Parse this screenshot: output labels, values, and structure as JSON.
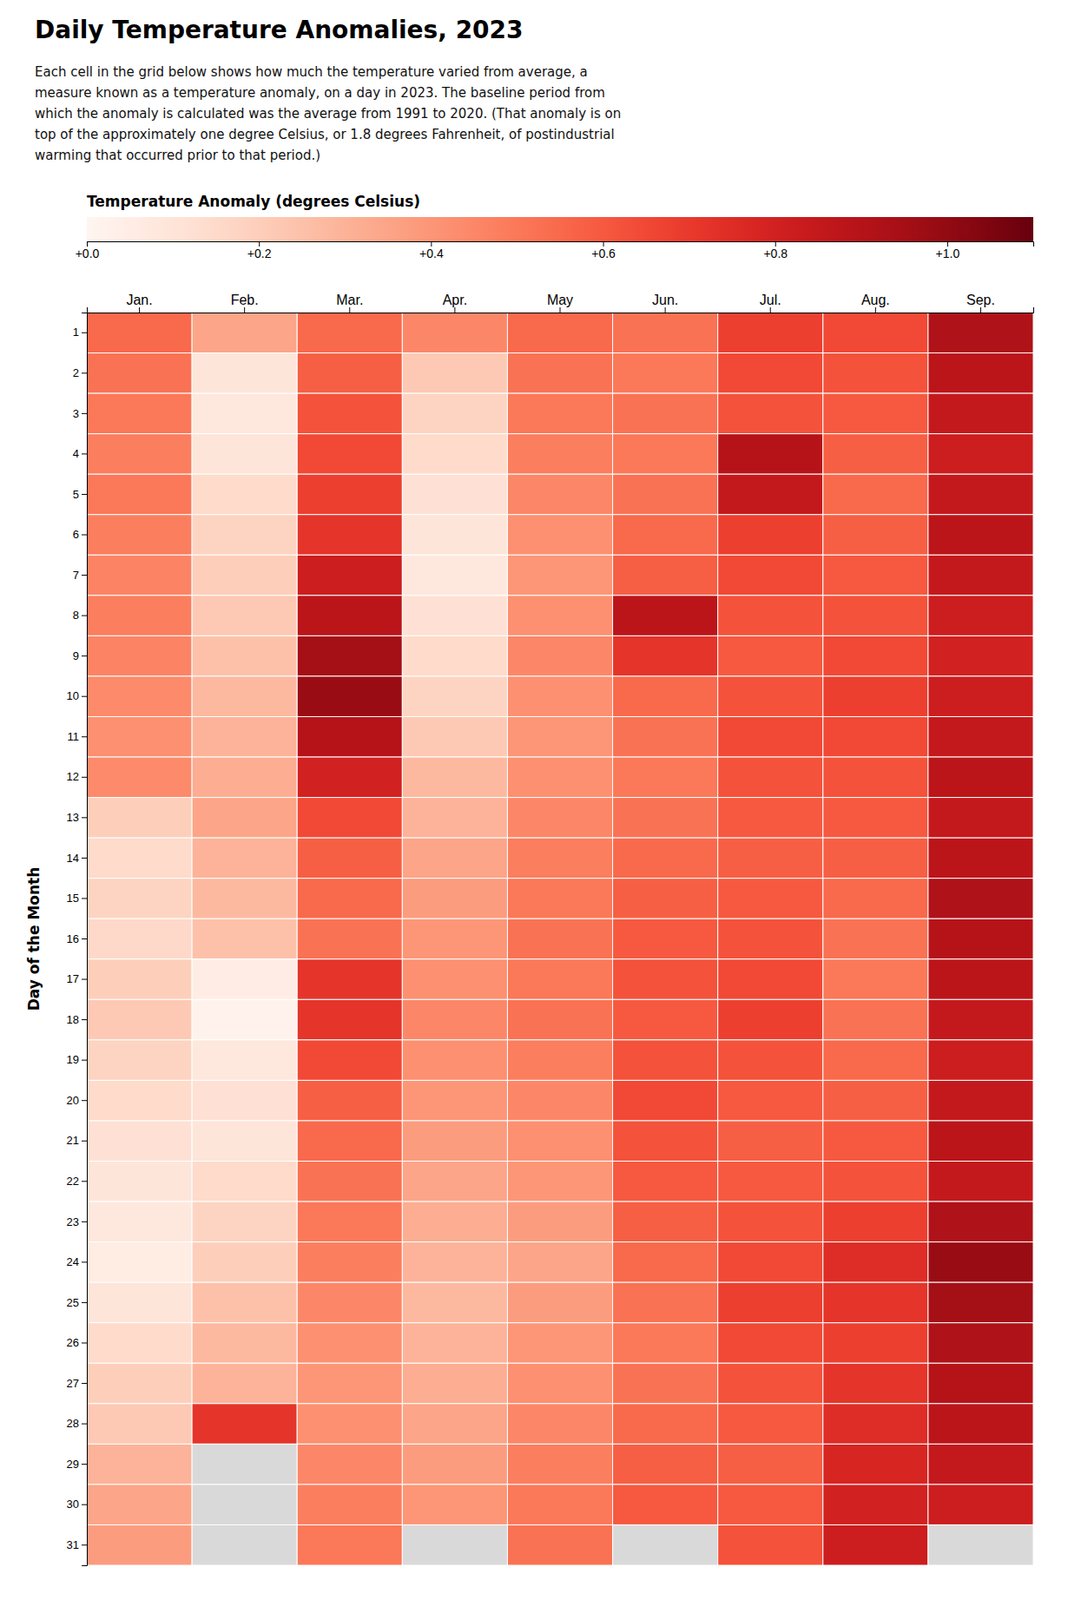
{
  "chart_data": {
    "type": "heatmap",
    "title": "Daily Temperature Anomalies, 2023",
    "subtitle": "Each cell in the grid below shows how much the temperature varied from average, a\nmeasure known as a temperature anomaly, on a day in 2023. The baseline period from\nwhich the anomaly is calculated was the average from 1991 to 2020. (That anomaly is on\ntop of the approximately one degree Celsius, or 1.8 degrees Fahrenheit, of postindustrial\nwarming that occurred prior to that period.)",
    "ylabel": "Day of the Month",
    "categories": [
      "Jan.",
      "Feb.",
      "Mar.",
      "Apr.",
      "May",
      "Jun.",
      "Jul.",
      "Aug.",
      "Sep."
    ],
    "yticks": [
      1,
      2,
      3,
      4,
      5,
      6,
      7,
      8,
      9,
      10,
      11,
      12,
      13,
      14,
      15,
      16,
      17,
      18,
      19,
      20,
      21,
      22,
      23,
      24,
      25,
      26,
      27,
      28,
      29,
      30,
      31
    ],
    "values": [
      [
        0.55,
        0.52,
        0.5,
        0.48,
        0.5,
        0.48,
        0.46,
        0.48,
        0.46,
        0.44,
        0.42,
        0.44,
        0.2,
        0.15,
        0.18,
        0.16,
        0.2,
        0.22,
        0.18,
        0.15,
        0.12,
        0.1,
        0.08,
        0.06,
        0.1,
        0.15,
        0.2,
        0.22,
        0.3,
        0.35,
        0.38
      ],
      [
        0.35,
        0.1,
        0.08,
        0.1,
        0.15,
        0.18,
        0.2,
        0.22,
        0.25,
        0.28,
        0.3,
        0.32,
        0.35,
        0.3,
        0.28,
        0.25,
        0.05,
        0.02,
        0.08,
        0.12,
        0.1,
        0.15,
        0.18,
        0.2,
        0.25,
        0.28,
        0.3,
        0.72,
        null,
        null,
        null
      ],
      [
        0.55,
        0.58,
        0.62,
        0.65,
        0.68,
        0.72,
        0.82,
        0.88,
        0.95,
        0.98,
        0.9,
        0.8,
        0.65,
        0.58,
        0.55,
        0.52,
        0.72,
        0.72,
        0.65,
        0.58,
        0.55,
        0.52,
        0.5,
        0.48,
        0.45,
        0.42,
        0.4,
        0.42,
        0.45,
        0.48,
        0.5
      ],
      [
        0.45,
        0.22,
        0.18,
        0.15,
        0.12,
        0.1,
        0.08,
        0.12,
        0.15,
        0.18,
        0.22,
        0.28,
        0.3,
        0.35,
        0.38,
        0.4,
        0.42,
        0.45,
        0.42,
        0.4,
        0.38,
        0.35,
        0.32,
        0.3,
        0.28,
        0.3,
        0.32,
        0.35,
        0.38,
        0.4,
        null
      ],
      [
        0.55,
        0.52,
        0.5,
        0.48,
        0.45,
        0.42,
        0.4,
        0.42,
        0.45,
        0.42,
        0.4,
        0.42,
        0.45,
        0.48,
        0.5,
        0.52,
        0.5,
        0.52,
        0.48,
        0.45,
        0.42,
        0.4,
        0.38,
        0.35,
        0.38,
        0.4,
        0.42,
        0.45,
        0.48,
        0.5,
        0.52
      ],
      [
        0.52,
        0.5,
        0.52,
        0.5,
        0.52,
        0.55,
        0.58,
        0.88,
        0.72,
        0.55,
        0.52,
        0.5,
        0.52,
        0.55,
        0.58,
        0.6,
        0.62,
        0.6,
        0.62,
        0.65,
        0.62,
        0.6,
        0.58,
        0.55,
        0.52,
        0.5,
        0.52,
        0.55,
        0.58,
        0.6,
        null
      ],
      [
        0.68,
        0.65,
        0.62,
        0.9,
        0.85,
        0.68,
        0.65,
        0.62,
        0.6,
        0.62,
        0.65,
        0.62,
        0.6,
        0.58,
        0.6,
        0.62,
        0.65,
        0.68,
        0.62,
        0.6,
        0.58,
        0.6,
        0.62,
        0.65,
        0.68,
        0.65,
        0.62,
        0.6,
        0.58,
        0.6,
        0.62
      ],
      [
        0.65,
        0.62,
        0.6,
        0.58,
        0.55,
        0.58,
        0.6,
        0.62,
        0.65,
        0.68,
        0.65,
        0.62,
        0.6,
        0.58,
        0.55,
        0.52,
        0.5,
        0.52,
        0.55,
        0.58,
        0.6,
        0.62,
        0.68,
        0.75,
        0.72,
        0.68,
        0.72,
        0.75,
        0.78,
        0.8,
        0.82
      ],
      [
        0.92,
        0.88,
        0.85,
        0.82,
        0.85,
        0.88,
        0.85,
        0.82,
        0.8,
        0.82,
        0.85,
        0.88,
        0.85,
        0.88,
        0.92,
        0.9,
        0.88,
        0.85,
        0.82,
        0.85,
        0.88,
        0.85,
        0.92,
        0.98,
        0.95,
        0.92,
        0.9,
        0.88,
        0.85,
        0.82,
        null
      ]
    ],
    "colorbar_label": "Temperature Anomaly (degrees Celsius)",
    "colorbar_range": [
      0.0,
      1.1
    ],
    "colorbar_ticks": [
      {
        "value": 0.0,
        "label": "+0.0"
      },
      {
        "value": 0.2,
        "label": "+0.2"
      },
      {
        "value": 0.4,
        "label": "+0.4"
      },
      {
        "value": 0.6,
        "label": "+0.6"
      },
      {
        "value": 0.8,
        "label": "+0.8"
      },
      {
        "value": 1.0,
        "label": "+1.0"
      }
    ]
  }
}
